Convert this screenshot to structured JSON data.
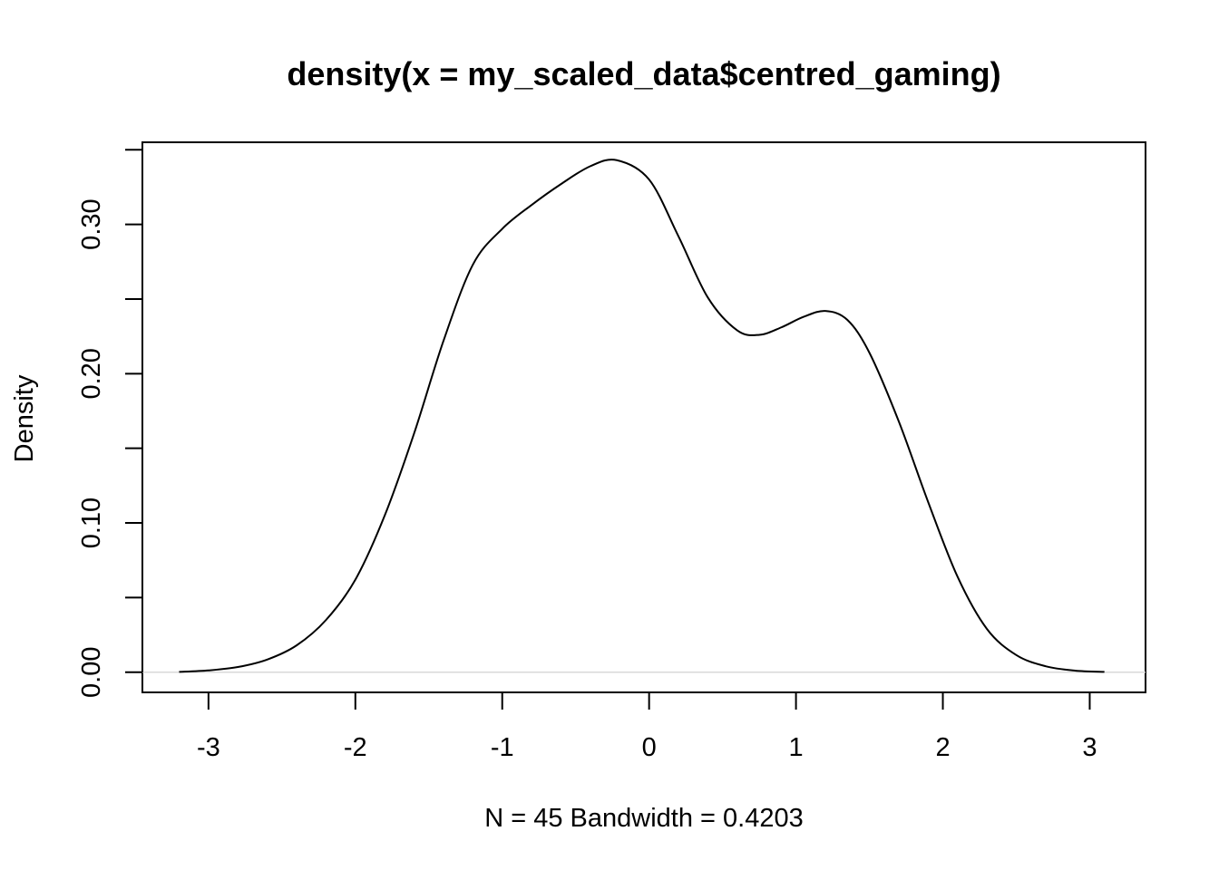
{
  "chart_data": {
    "type": "line",
    "title": "density(x = my_scaled_data$centred_gaming)",
    "xlabel": "N = 45   Bandwidth = 0.4203",
    "ylabel": "Density",
    "xlim": [
      -3.45,
      3.38
    ],
    "ylim": [
      -0.0135,
      0.355
    ],
    "x_ticks": [
      -3,
      -2,
      -1,
      0,
      1,
      2,
      3
    ],
    "y_ticks": [
      0.0,
      0.05,
      0.1,
      0.15,
      0.2,
      0.25,
      0.3,
      0.35
    ],
    "y_tick_labels": {
      "0": "0.00",
      "0.1": "0.10",
      "0.2": "0.20",
      "0.3": "0.30"
    },
    "baseline": 0,
    "grid": false,
    "series": [
      {
        "color": "#000000",
        "x": [
          -3.2,
          -3.0,
          -2.8,
          -2.6,
          -2.4,
          -2.2,
          -2.0,
          -1.8,
          -1.6,
          -1.4,
          -1.2,
          -1.0,
          -0.8,
          -0.6,
          -0.4,
          -0.22,
          0.0,
          0.2,
          0.4,
          0.6,
          0.75,
          0.9,
          1.05,
          1.2,
          1.35,
          1.5,
          1.7,
          1.9,
          2.1,
          2.3,
          2.5,
          2.7,
          2.9,
          3.1
        ],
        "y": [
          0.0002,
          0.0012,
          0.0035,
          0.0085,
          0.018,
          0.035,
          0.062,
          0.105,
          0.16,
          0.222,
          0.273,
          0.297,
          0.313,
          0.327,
          0.339,
          0.343,
          0.33,
          0.292,
          0.251,
          0.229,
          0.226,
          0.231,
          0.238,
          0.242,
          0.236,
          0.214,
          0.168,
          0.114,
          0.064,
          0.029,
          0.0115,
          0.004,
          0.0011,
          0.0002
        ]
      }
    ]
  }
}
